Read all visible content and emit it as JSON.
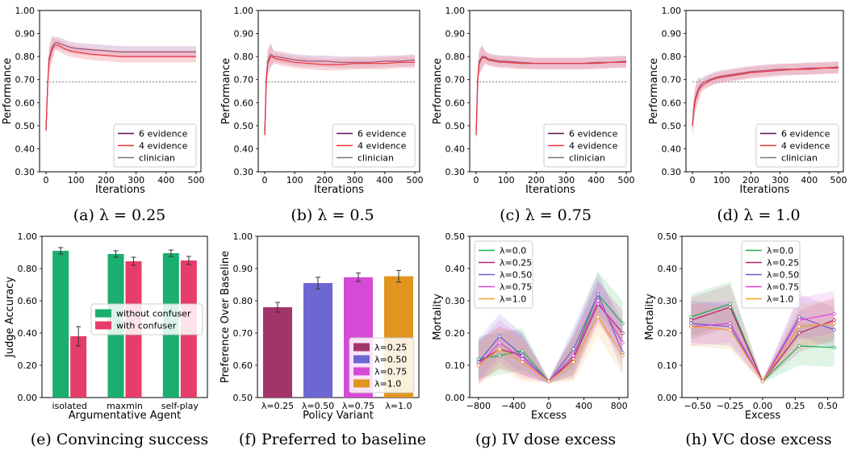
{
  "chart_data": [
    {
      "type": "line",
      "caption": "(a) λ = 0.25",
      "ylabel": "Performance",
      "xlabel": "Iterations",
      "ylim": [
        0.3,
        1.0
      ],
      "xlim": [
        0,
        500
      ],
      "yticks": [
        "0.30",
        "0.40",
        "0.50",
        "0.60",
        "0.70",
        "0.80",
        "0.90",
        "1.00"
      ],
      "xticks": [
        "0",
        "100",
        "200",
        "300",
        "400",
        "500"
      ],
      "series": [
        {
          "name": "6 evidence",
          "color": "#5b0f56",
          "x": [
            0,
            5,
            10,
            20,
            30,
            40,
            60,
            80,
            100,
            150,
            200,
            250,
            300,
            350,
            400,
            450,
            500
          ],
          "y": [
            0.48,
            0.66,
            0.79,
            0.84,
            0.86,
            0.86,
            0.85,
            0.84,
            0.835,
            0.83,
            0.825,
            0.82,
            0.82,
            0.82,
            0.82,
            0.82,
            0.82
          ]
        },
        {
          "name": "4 evidence",
          "color": "#f0303a",
          "x": [
            0,
            5,
            10,
            20,
            30,
            40,
            60,
            80,
            100,
            150,
            200,
            250,
            300,
            350,
            400,
            450,
            500
          ],
          "y": [
            0.48,
            0.66,
            0.78,
            0.83,
            0.85,
            0.85,
            0.835,
            0.825,
            0.82,
            0.81,
            0.805,
            0.8,
            0.8,
            0.8,
            0.8,
            0.8,
            0.8
          ]
        }
      ],
      "reference": {
        "name": "clinician",
        "y": 0.69,
        "color": "#777777"
      },
      "legend": [
        "6 evidence",
        "4 evidence",
        "clinician"
      ],
      "legend_position": "lower-right"
    },
    {
      "type": "line",
      "caption": "(b) λ = 0.5",
      "ylabel": "Performance",
      "xlabel": "Iterations",
      "ylim": [
        0.3,
        1.0
      ],
      "xlim": [
        0,
        500
      ],
      "yticks": [
        "0.30",
        "0.40",
        "0.50",
        "0.60",
        "0.70",
        "0.80",
        "0.90",
        "1.00"
      ],
      "xticks": [
        "0",
        "100",
        "200",
        "300",
        "400",
        "500"
      ],
      "series": [
        {
          "name": "6 evidence",
          "color": "#5b0f56",
          "x": [
            0,
            5,
            10,
            20,
            30,
            40,
            60,
            80,
            100,
            150,
            200,
            250,
            300,
            350,
            400,
            450,
            500
          ],
          "y": [
            0.46,
            0.7,
            0.78,
            0.81,
            0.8,
            0.8,
            0.795,
            0.79,
            0.785,
            0.78,
            0.78,
            0.775,
            0.775,
            0.775,
            0.78,
            0.78,
            0.785
          ]
        },
        {
          "name": "4 evidence",
          "color": "#f0303a",
          "x": [
            0,
            5,
            10,
            20,
            30,
            40,
            60,
            80,
            100,
            150,
            200,
            250,
            300,
            350,
            400,
            450,
            500
          ],
          "y": [
            0.46,
            0.69,
            0.77,
            0.8,
            0.795,
            0.79,
            0.785,
            0.78,
            0.775,
            0.77,
            0.765,
            0.765,
            0.77,
            0.77,
            0.77,
            0.775,
            0.775
          ]
        }
      ],
      "reference": {
        "name": "clinician",
        "y": 0.69,
        "color": "#777777"
      },
      "legend": [
        "6 evidence",
        "4 evidence",
        "clinician"
      ],
      "legend_position": "lower-right"
    },
    {
      "type": "line",
      "caption": "(c) λ = 0.75",
      "ylabel": "Performance",
      "xlabel": "Iterations",
      "ylim": [
        0.3,
        1.0
      ],
      "xlim": [
        0,
        500
      ],
      "yticks": [
        "0.30",
        "0.40",
        "0.50",
        "0.60",
        "0.70",
        "0.80",
        "0.90",
        "1.00"
      ],
      "xticks": [
        "0",
        "100",
        "200",
        "300",
        "400",
        "500"
      ],
      "series": [
        {
          "name": "6 evidence",
          "color": "#5b0f56",
          "x": [
            0,
            5,
            10,
            20,
            30,
            40,
            60,
            80,
            100,
            150,
            200,
            250,
            300,
            350,
            400,
            450,
            500
          ],
          "y": [
            0.46,
            0.7,
            0.78,
            0.8,
            0.8,
            0.79,
            0.785,
            0.78,
            0.78,
            0.775,
            0.77,
            0.77,
            0.77,
            0.77,
            0.775,
            0.775,
            0.78
          ]
        },
        {
          "name": "4 evidence",
          "color": "#f0303a",
          "x": [
            0,
            5,
            10,
            20,
            30,
            40,
            60,
            80,
            100,
            150,
            200,
            250,
            300,
            350,
            400,
            450,
            500
          ],
          "y": [
            0.46,
            0.69,
            0.77,
            0.795,
            0.795,
            0.785,
            0.78,
            0.775,
            0.775,
            0.77,
            0.77,
            0.77,
            0.77,
            0.77,
            0.77,
            0.775,
            0.775
          ]
        }
      ],
      "reference": {
        "name": "clinician",
        "y": 0.69,
        "color": "#777777"
      },
      "legend": [
        "6 evidence",
        "4 evidence",
        "clinician"
      ],
      "legend_position": "lower-right"
    },
    {
      "type": "line",
      "caption": "(d) λ = 1.0",
      "ylabel": "Performance",
      "xlabel": "Iterations",
      "ylim": [
        0.3,
        1.0
      ],
      "xlim": [
        0,
        500
      ],
      "yticks": [
        "0.30",
        "0.40",
        "0.50",
        "0.60",
        "0.70",
        "0.80",
        "0.90",
        "1.00"
      ],
      "xticks": [
        "0",
        "100",
        "200",
        "300",
        "400",
        "500"
      ],
      "series": [
        {
          "name": "6 evidence",
          "color": "#5b0f56",
          "x": [
            0,
            5,
            10,
            20,
            30,
            40,
            60,
            80,
            100,
            150,
            200,
            250,
            300,
            350,
            400,
            450,
            500
          ],
          "y": [
            0.5,
            0.58,
            0.62,
            0.66,
            0.68,
            0.69,
            0.7,
            0.71,
            0.715,
            0.725,
            0.735,
            0.74,
            0.745,
            0.745,
            0.75,
            0.75,
            0.755
          ]
        },
        {
          "name": "4 evidence",
          "color": "#f0303a",
          "x": [
            0,
            5,
            10,
            20,
            30,
            40,
            60,
            80,
            100,
            150,
            200,
            250,
            300,
            350,
            400,
            450,
            500
          ],
          "y": [
            0.5,
            0.57,
            0.61,
            0.65,
            0.67,
            0.68,
            0.695,
            0.705,
            0.71,
            0.72,
            0.73,
            0.735,
            0.74,
            0.745,
            0.745,
            0.75,
            0.75
          ]
        }
      ],
      "reference": {
        "name": "clinician",
        "y": 0.69,
        "color": "#777777"
      },
      "legend": [
        "6 evidence",
        "4 evidence",
        "clinician"
      ],
      "legend_position": "lower-right"
    },
    {
      "type": "bar",
      "caption": "(e) Convincing success",
      "ylabel": "Judge Accuracy",
      "xlabel": "Argumentative Agent",
      "ylim": [
        0.0,
        1.0
      ],
      "yticks": [
        "0.00",
        "0.20",
        "0.40",
        "0.60",
        "0.80",
        "1.00"
      ],
      "categories": [
        "isolated",
        "maxmin",
        "self-play"
      ],
      "series": [
        {
          "name": "without confuser",
          "color": "#1aae6f",
          "values": [
            0.91,
            0.89,
            0.895
          ],
          "errors": [
            0.02,
            0.02,
            0.02
          ]
        },
        {
          "name": "with confuser",
          "color": "#e63d6a",
          "values": [
            0.38,
            0.845,
            0.85
          ],
          "errors": [
            0.06,
            0.025,
            0.025
          ]
        }
      ],
      "legend": [
        "without confuser",
        "with confuser"
      ],
      "legend_position": "center-right"
    },
    {
      "type": "bar",
      "caption": "(f) Preferred to baseline",
      "ylabel": "Preference Over Baseline",
      "xlabel": "Policy Variant",
      "ylim": [
        0.5,
        1.0
      ],
      "yticks": [
        "0.50",
        "0.60",
        "0.70",
        "0.80",
        "0.90",
        "1.00"
      ],
      "categories": [
        "λ=0.25",
        "λ=0.50",
        "λ=0.75",
        "λ=1.0"
      ],
      "values": [
        0.78,
        0.855,
        0.873,
        0.876
      ],
      "errors": [
        0.015,
        0.018,
        0.013,
        0.018
      ],
      "colors": [
        "#a3346a",
        "#6d67d2",
        "#d64ad6",
        "#e0951f"
      ],
      "legend": [
        "λ=0.25",
        "λ=0.50",
        "λ=0.75",
        "λ=1.0"
      ],
      "legend_position": "lower-right"
    },
    {
      "type": "line",
      "caption": "(g) IV dose excess",
      "ylabel": "Mortality",
      "xlabel": "Excess",
      "ylim": [
        0.0,
        0.5
      ],
      "xlim": [
        -900,
        900
      ],
      "yticks": [
        "0.00",
        "0.10",
        "0.20",
        "0.30",
        "0.40",
        "0.50"
      ],
      "xticks": [
        "−800",
        "−400",
        "0",
        "400",
        "800"
      ],
      "xtick_values": [
        -800,
        -400,
        0,
        400,
        800
      ],
      "x": [
        -800,
        -560,
        -300,
        0,
        280,
        560,
        840
      ],
      "series": [
        {
          "name": "λ=0.0",
          "color": "#1aae4a",
          "values": [
            0.12,
            0.13,
            0.145,
            0.05,
            0.13,
            0.32,
            0.23
          ]
        },
        {
          "name": "λ=0.25",
          "color": "#b5256e",
          "values": [
            0.11,
            0.15,
            0.13,
            0.05,
            0.12,
            0.29,
            0.2
          ]
        },
        {
          "name": "λ=0.50",
          "color": "#6a5fd0",
          "values": [
            0.11,
            0.19,
            0.13,
            0.05,
            0.15,
            0.32,
            0.14
          ]
        },
        {
          "name": "λ=0.75",
          "color": "#e040e0",
          "values": [
            0.1,
            0.17,
            0.12,
            0.05,
            0.13,
            0.3,
            0.17
          ]
        },
        {
          "name": "λ=1.0",
          "color": "#f0a030",
          "values": [
            0.1,
            0.15,
            0.11,
            0.05,
            0.11,
            0.25,
            0.13
          ]
        }
      ],
      "legend": [
        "λ=0.0",
        "λ=0.25",
        "λ=0.50",
        "λ=0.75",
        "λ=1.0"
      ],
      "legend_position": "upper-left"
    },
    {
      "type": "line",
      "caption": "(h) VC dose excess",
      "ylabel": "Mortality",
      "xlabel": "Excess",
      "ylim": [
        0.0,
        0.5
      ],
      "xlim": [
        -0.62,
        0.62
      ],
      "yticks": [
        "0.00",
        "0.10",
        "0.20",
        "0.30",
        "0.40",
        "0.50"
      ],
      "xticks": [
        "−0.50",
        "−0.25",
        "0.00",
        "0.25",
        "0.50"
      ],
      "xtick_values": [
        -0.5,
        -0.25,
        0,
        0.25,
        0.5
      ],
      "x": [
        -0.55,
        -0.25,
        0,
        0.28,
        0.55
      ],
      "series": [
        {
          "name": "λ=0.0",
          "color": "#1aae4a",
          "values": [
            0.25,
            0.29,
            0.05,
            0.16,
            0.155
          ]
        },
        {
          "name": "λ=0.25",
          "color": "#b5256e",
          "values": [
            0.24,
            0.28,
            0.05,
            0.2,
            0.24
          ]
        },
        {
          "name": "λ=0.50",
          "color": "#6a5fd0",
          "values": [
            0.23,
            0.22,
            0.05,
            0.25,
            0.21
          ]
        },
        {
          "name": "λ=0.75",
          "color": "#e040e0",
          "values": [
            0.22,
            0.23,
            0.05,
            0.24,
            0.26
          ]
        },
        {
          "name": "λ=1.0",
          "color": "#f0a030",
          "values": [
            0.22,
            0.21,
            0.05,
            0.22,
            0.23
          ]
        }
      ],
      "legend": [
        "λ=0.0",
        "λ=0.25",
        "λ=0.50",
        "λ=0.75",
        "λ=1.0"
      ],
      "legend_position": "upper-center"
    }
  ]
}
